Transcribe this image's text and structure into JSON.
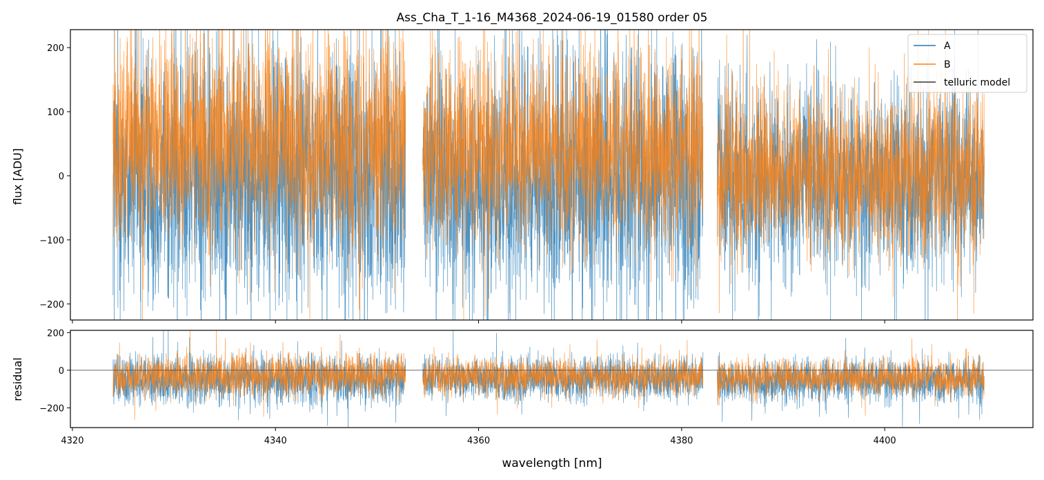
{
  "title": "Ass_Cha_T_1-16_M4368_2024-06-19_01580  order 05",
  "colors": {
    "A": "#1f77b4",
    "B": "#ff7f0e",
    "telluric": "#333333"
  },
  "chart_data": [
    {
      "panel": "flux",
      "type": "line",
      "ylabel": "flux [ADU]",
      "xlim": [
        4319.8,
        4414.6
      ],
      "ylim": [
        -225,
        228
      ],
      "yticks": [
        200,
        100,
        0,
        -100,
        -200
      ],
      "ytick_labels": [
        "200",
        "100",
        "0",
        "−100",
        "−200"
      ],
      "xticks": [
        4320,
        4340,
        4360,
        4380,
        4400
      ],
      "grid": false,
      "legend": {
        "position": "top-right",
        "entries": [
          "A",
          "B",
          "telluric model"
        ]
      },
      "segments": [
        {
          "x_start": 4324.0,
          "x_end": 4352.8,
          "A_base": 0,
          "A_amp": 150,
          "B_base": 55,
          "B_amp": 120
        },
        {
          "x_start": 4354.5,
          "x_end": 4382.1,
          "A_base": -10,
          "A_amp": 145,
          "B_base": 45,
          "B_amp": 110
        },
        {
          "x_start": 4383.5,
          "x_end": 4409.8,
          "A_base": -10,
          "A_amp": 110,
          "B_base": 5,
          "B_amp": 95
        }
      ],
      "series": [
        {
          "name": "telluric model (B)",
          "x": [
            4324.0,
            4327.0,
            4331.0,
            4336.0,
            4341.0,
            4346.0,
            4350.0,
            4352.8,
            4354.5,
            4358.0,
            4364.0,
            4370.0,
            4376.0,
            4380.0,
            4382.1,
            4383.5,
            4386.0,
            4390.0,
            4395.0,
            4400.0,
            4405.0,
            4409.8
          ],
          "y": [
            95,
            96,
            90,
            78,
            68,
            65,
            70,
            74,
            88,
            72,
            62,
            57,
            52,
            43,
            33,
            53,
            55,
            59,
            60,
            60,
            62,
            70
          ]
        },
        {
          "name": "telluric model (A)",
          "x": [
            4324.0,
            4330.0,
            4336.0,
            4342.0,
            4346.0,
            4350.0,
            4352.8,
            4354.5,
            4358.0,
            4362.0,
            4367.0,
            4372.0,
            4377.0,
            4380.0,
            4382.1,
            4383.5,
            4386.0,
            4390.0,
            4395.0,
            4400.0,
            4405.0,
            4409.8
          ],
          "y": [
            35,
            27,
            22,
            16,
            9,
            10,
            14,
            12,
            23,
            24,
            19,
            24,
            31,
            28,
            21,
            45,
            60,
            62,
            61,
            60,
            64,
            63
          ]
        }
      ]
    },
    {
      "panel": "residual",
      "type": "line",
      "ylabel": "residual",
      "xlabel": "wavelength [nm]",
      "xlim": [
        4319.8,
        4414.6
      ],
      "ylim": [
        -305,
        212
      ],
      "yticks": [
        200,
        0,
        -200
      ],
      "ytick_labels": [
        "200",
        "0",
        "−200"
      ],
      "xticks": [
        4320,
        4340,
        4360,
        4380,
        4400
      ],
      "xtick_labels": [
        "4320",
        "4340",
        "4360",
        "4380",
        "4400"
      ],
      "zero_line": 0,
      "segments": [
        {
          "x_start": 4324.0,
          "x_end": 4352.8,
          "A_base": -50,
          "A_amp": 95,
          "B_base": -30,
          "B_amp": 80
        },
        {
          "x_start": 4354.5,
          "x_end": 4382.1,
          "A_base": -45,
          "A_amp": 80,
          "B_base": -35,
          "B_amp": 70
        },
        {
          "x_start": 4383.5,
          "x_end": 4409.8,
          "A_base": -55,
          "A_amp": 80,
          "B_base": -40,
          "B_amp": 70
        }
      ]
    }
  ]
}
